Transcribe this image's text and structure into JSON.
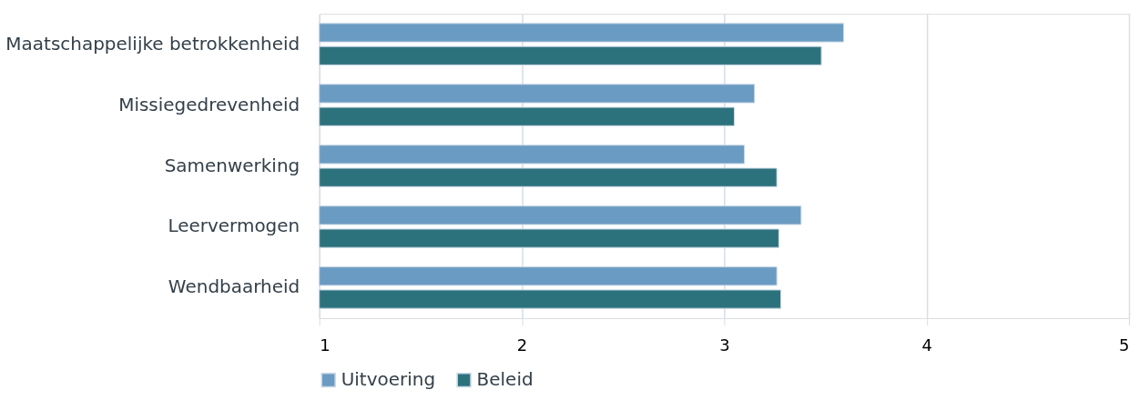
{
  "chart_data": {
    "type": "bar",
    "orientation": "horizontal",
    "categories": [
      "Maatschappelijke betrokkenheid",
      "Missiegedrevenheid",
      "Samenwerking",
      "Leervermogen",
      "Wendbaarheid"
    ],
    "series": [
      {
        "name": "Uitvoering",
        "color": "#6a9bc3",
        "values": [
          3.59,
          3.15,
          3.1,
          3.38,
          3.26
        ]
      },
      {
        "name": "Beleid",
        "color": "#2c727c",
        "values": [
          3.48,
          3.05,
          3.26,
          3.27,
          3.28
        ]
      }
    ],
    "xlim": [
      1,
      5
    ],
    "xticks": [
      1,
      2,
      3,
      4,
      5
    ],
    "grid": "x",
    "legend": "bottom"
  }
}
